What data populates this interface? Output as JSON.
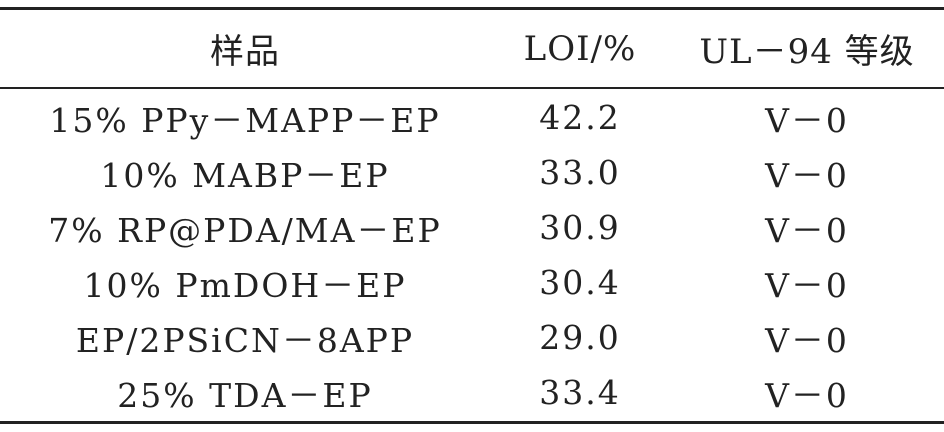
{
  "table": {
    "headers": [
      "样品",
      "LOI/%",
      "UL－94 等级"
    ],
    "rows": [
      [
        "15% PPy－MAPP－EP",
        "42.2",
        "V－0"
      ],
      [
        "10% MABP－EP",
        "33.0",
        "V－0"
      ],
      [
        "7% RP@PDA/MA－EP",
        "30.9",
        "V－0"
      ],
      [
        "10% PmDOH－EP",
        "30.4",
        "V－0"
      ],
      [
        "EP/2PSiCN－8APP",
        "29.0",
        "V－0"
      ],
      [
        "25% TDA－EP",
        "33.4",
        "V－0"
      ]
    ]
  }
}
